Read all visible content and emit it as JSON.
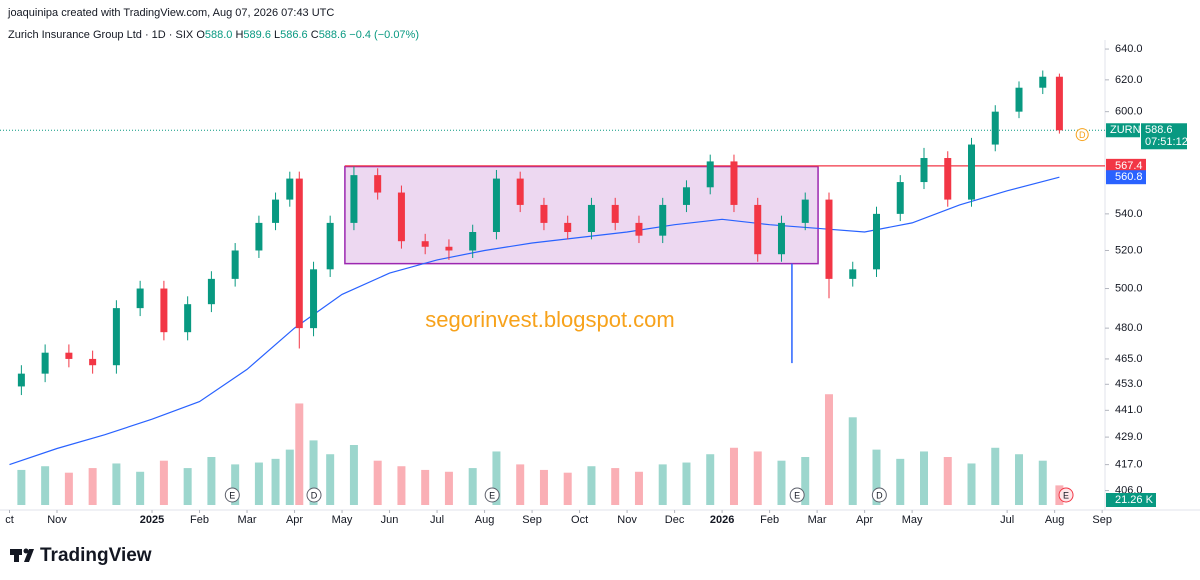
{
  "header": {
    "credit": "joaquinipa created with TradingView.com, Aug 07, 2026 07:43 UTC",
    "symbol": "Zurich Insurance Group Ltd · 1D · SIX",
    "ohlc": [
      {
        "key": "O",
        "val": "588.0"
      },
      {
        "key": "H",
        "val": "589.6"
      },
      {
        "key": "L",
        "val": "586.6"
      },
      {
        "key": "C",
        "val": "588.6"
      }
    ],
    "change": "−0.4 (−0.07%)"
  },
  "chart_data": {
    "type": "candlestick",
    "log_scale": true,
    "grid": false,
    "up_color": "#089981",
    "down_color": "#f23645",
    "x": [
      0.25,
      0.75,
      1.25,
      1.75,
      2.25,
      2.75,
      3.25,
      3.75,
      4.25,
      4.75,
      5.25,
      5.6,
      5.9,
      6.1,
      6.4,
      6.75,
      7.25,
      7.75,
      8.25,
      8.75,
      9.25,
      9.75,
      10.25,
      10.75,
      11.25,
      11.75,
      12.25,
      12.75,
      13.25,
      13.75,
      14.25,
      14.75,
      15.25,
      15.75,
      16.25,
      16.75,
      17.25,
      17.75,
      18.25,
      18.75,
      19.25,
      19.75,
      20.25,
      20.75,
      21.25,
      21.75,
      22.1
    ],
    "open": [
      452,
      458,
      468,
      465,
      462,
      490,
      500,
      478,
      492,
      505,
      520,
      535,
      548,
      560,
      480,
      510,
      535,
      562,
      552,
      525,
      522,
      520,
      530,
      560,
      545,
      535,
      530,
      545,
      535,
      528,
      545,
      555,
      570,
      545,
      518,
      535,
      548,
      505,
      510,
      540,
      558,
      572,
      548,
      580,
      600,
      615,
      622
    ],
    "high": [
      462,
      472,
      472,
      469,
      494,
      504,
      504,
      496,
      509,
      524,
      539,
      552,
      564,
      564,
      514,
      539,
      567,
      566,
      556,
      529,
      526,
      534,
      565,
      564,
      549,
      539,
      549,
      549,
      539,
      549,
      559,
      574,
      574,
      549,
      539,
      552,
      552,
      514,
      544,
      562,
      578,
      576,
      584,
      604,
      619,
      626,
      624
    ],
    "low": [
      448,
      454,
      461,
      458,
      458,
      486,
      474,
      474,
      488,
      501,
      516,
      531,
      544,
      470,
      476,
      506,
      531,
      548,
      521,
      518,
      515,
      516,
      526,
      541,
      531,
      526,
      526,
      531,
      524,
      524,
      541,
      551,
      541,
      514,
      514,
      531,
      495,
      501,
      506,
      536,
      554,
      544,
      544,
      576,
      596,
      611,
      586.6
    ],
    "close": [
      458,
      468,
      465,
      462,
      490,
      500,
      478,
      492,
      505,
      520,
      535,
      548,
      560,
      480,
      510,
      535,
      562,
      552,
      525,
      522,
      520,
      530,
      560,
      545,
      535,
      530,
      545,
      535,
      528,
      545,
      555,
      570,
      545,
      518,
      535,
      548,
      505,
      510,
      540,
      558,
      572,
      548,
      580,
      600,
      615,
      622,
      588.6
    ],
    "volume": [
      38,
      42,
      35,
      40,
      45,
      36,
      48,
      40,
      52,
      44,
      46,
      50,
      60,
      110,
      70,
      55,
      65,
      48,
      42,
      38,
      36,
      40,
      58,
      44,
      38,
      35,
      42,
      40,
      36,
      44,
      46,
      55,
      62,
      58,
      48,
      52,
      120,
      95,
      60,
      50,
      58,
      52,
      45,
      62,
      55,
      48,
      21.26
    ],
    "volume_ylim": [
      0,
      130
    ],
    "volume_tag": "21.26 K",
    "ma": {
      "color": "#2962ff",
      "x": [
        0,
        1,
        2,
        3,
        4,
        5,
        6,
        7,
        8,
        9,
        10,
        11,
        12,
        13,
        14,
        15,
        16,
        17,
        18,
        19,
        20,
        21,
        22.1
      ],
      "values": [
        417,
        424,
        430,
        437,
        445,
        460,
        480,
        497,
        508,
        515,
        520,
        524,
        527,
        530,
        534,
        537,
        534,
        532,
        530,
        535,
        545,
        553,
        560.8
      ]
    },
    "box": {
      "x": [
        7.06,
        17.02
      ],
      "y": [
        513,
        567
      ],
      "color": "#9c27b0"
    },
    "hline": {
      "value": 567.4,
      "x": 7.06,
      "color": "#f23645"
    },
    "vline": {
      "x": 16.47,
      "y": [
        463,
        513
      ],
      "color": "#2962ff"
    },
    "symbol_tag": "ZURN",
    "countdown": "07:51:12",
    "dividend_flag": {
      "x": 22.58,
      "y": 586,
      "label": "D"
    },
    "events": [
      {
        "x": 4.69,
        "label": "E"
      },
      {
        "x": 6.41,
        "label": "D"
      },
      {
        "x": 10.16,
        "label": "E"
      },
      {
        "x": 16.58,
        "label": "E"
      },
      {
        "x": 18.31,
        "label": "D"
      },
      {
        "x": 22.24,
        "label": "E"
      }
    ],
    "watermark": "segorinvest.blogspot.com",
    "xlim": [
      -0.2,
      23.06
    ],
    "xticks": [
      {
        "value": 0,
        "label": "ct"
      },
      {
        "value": 1,
        "label": "Nov"
      },
      {
        "value": 3,
        "label": "2025"
      },
      {
        "value": 4,
        "label": "Feb"
      },
      {
        "value": 5,
        "label": "Mar"
      },
      {
        "value": 6,
        "label": "Apr"
      },
      {
        "value": 7,
        "label": "May"
      },
      {
        "value": 8,
        "label": "Jun"
      },
      {
        "value": 9,
        "label": "Jul"
      },
      {
        "value": 10,
        "label": "Aug"
      },
      {
        "value": 11,
        "label": "Sep"
      },
      {
        "value": 12,
        "label": "Oct"
      },
      {
        "value": 13,
        "label": "Nov"
      },
      {
        "value": 14,
        "label": "Dec"
      },
      {
        "value": 15,
        "label": "2026"
      },
      {
        "value": 16,
        "label": "Feb"
      },
      {
        "value": 17,
        "label": "Mar"
      },
      {
        "value": 18,
        "label": "Apr"
      },
      {
        "value": 19,
        "label": "May"
      },
      {
        "value": 21,
        "label": "Jul"
      },
      {
        "value": 22,
        "label": "Aug"
      },
      {
        "value": 23,
        "label": "Sep"
      }
    ],
    "ylim": [
      400,
      646
    ],
    "yticks": [
      {
        "value": 640,
        "label": "640.0"
      },
      {
        "value": 620,
        "label": "620.0"
      },
      {
        "value": 600,
        "label": "600.0"
      },
      {
        "value": 540,
        "label": "540.0"
      },
      {
        "value": 520,
        "label": "520.0"
      },
      {
        "value": 500,
        "label": "500.0"
      },
      {
        "value": 480,
        "label": "480.0"
      },
      {
        "value": 465,
        "label": "465.0"
      },
      {
        "value": 453,
        "label": "453.0"
      },
      {
        "value": 441,
        "label": "441.0"
      },
      {
        "value": 429,
        "label": "429.0"
      },
      {
        "value": 417,
        "label": "417.0"
      },
      {
        "value": 406,
        "label": "406.0"
      }
    ]
  },
  "brand": "TradingView"
}
